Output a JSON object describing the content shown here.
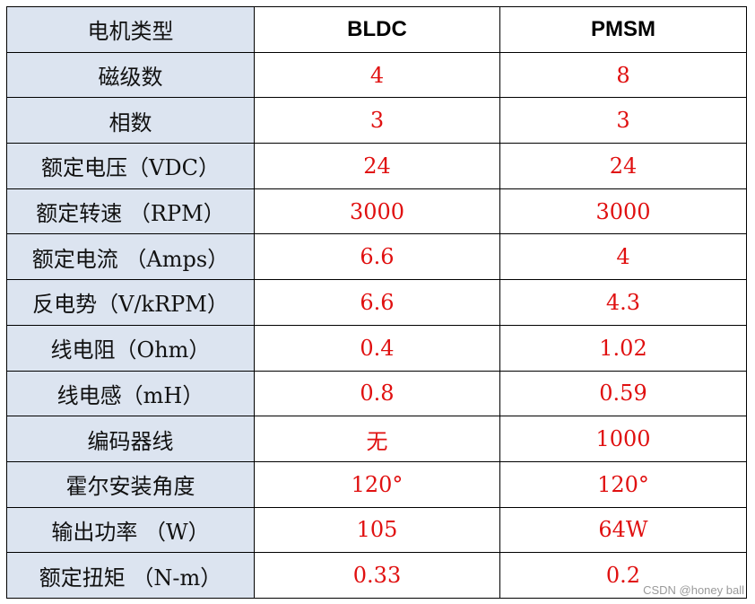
{
  "table": {
    "header": {
      "label": "电机类型",
      "col1": "BLDC",
      "col2": "PMSM"
    },
    "rows": [
      {
        "label": "磁级数",
        "bldc": "4",
        "pmsm": "8"
      },
      {
        "label": "相数",
        "bldc": "3",
        "pmsm": "3"
      },
      {
        "label": "额定电压（VDC）",
        "bldc": "24",
        "pmsm": "24"
      },
      {
        "label": "额定转速 （RPM）",
        "bldc": "3000",
        "pmsm": "3000"
      },
      {
        "label": "额定电流 （Amps）",
        "bldc": "6.6",
        "pmsm": "4"
      },
      {
        "label": "反电势（V/kRPM）",
        "bldc": "6.6",
        "pmsm": "4.3"
      },
      {
        "label": "线电阻（Ohm）",
        "bldc": "0.4",
        "pmsm": "1.02"
      },
      {
        "label": "线电感（mH）",
        "bldc": "0.8",
        "pmsm": "0.59"
      },
      {
        "label": "编码器线",
        "bldc": "无",
        "pmsm": "1000"
      },
      {
        "label": "霍尔安装角度",
        "bldc": "120°",
        "pmsm": "120°"
      },
      {
        "label": "输出功率 （W）",
        "bldc": "105",
        "pmsm": "64W"
      },
      {
        "label": "额定扭矩 （N-m）",
        "bldc": "0.33",
        "pmsm": "0.2"
      }
    ]
  },
  "watermark": "CSDN @honey ball",
  "colors": {
    "label_bg": "#dce4f0",
    "value_text": "#e01010",
    "border": "#000000"
  }
}
